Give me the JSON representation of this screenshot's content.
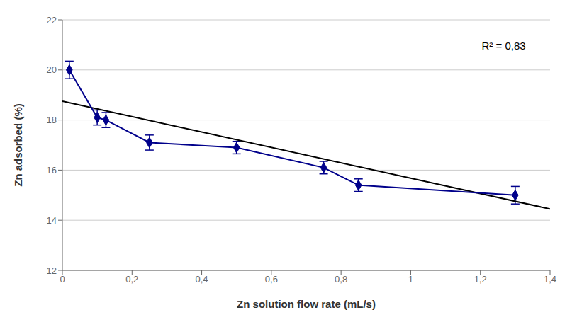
{
  "chart_data": {
    "type": "line",
    "xlabel": "Zn solution flow rate (mL/s)",
    "ylabel": "Zn adsorbed (%)",
    "annotation": "R² = 0,83",
    "xlim": [
      0,
      1.4
    ],
    "ylim": [
      12,
      22
    ],
    "xticks": [
      0,
      {
        "value": 0.2,
        "label": "0,2"
      },
      {
        "value": 0.4,
        "label": "0,4"
      },
      {
        "value": 0.6,
        "label": "0,6"
      },
      {
        "value": 0.8,
        "label": "0,8"
      },
      1,
      {
        "value": 1.2,
        "label": "1,2"
      },
      {
        "value": 1.4,
        "label": "1,4"
      }
    ],
    "yticks": [
      12,
      14,
      16,
      18,
      20,
      22
    ],
    "grid": "y",
    "series": [
      {
        "color": "#000000",
        "marker": "none",
        "line_style": "solid",
        "x": [
          0.0,
          1.4
        ],
        "values": [
          18.75,
          14.45
        ]
      },
      {
        "color": "#00008B",
        "marker": "diamond",
        "line_style": "solid",
        "x": [
          0.02,
          0.1,
          0.125,
          0.25,
          0.5,
          0.75,
          0.85,
          1.3
        ],
        "values": [
          20.0,
          18.1,
          18.0,
          17.1,
          16.9,
          16.1,
          15.4,
          15.0
        ],
        "yerr": [
          0.35,
          0.3,
          0.3,
          0.3,
          0.25,
          0.25,
          0.25,
          0.35
        ]
      }
    ]
  }
}
